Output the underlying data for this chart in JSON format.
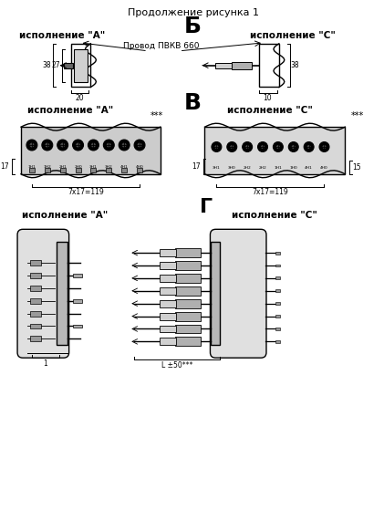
{
  "title": "Продолжение рисунка 1",
  "section_b": "Б",
  "section_v": "В",
  "section_g": "Г",
  "label_a": "исполнение \"А\"",
  "label_c": "исполнение \"С\"",
  "wire_label": "Провод ПВКВ 660",
  "dim_38": "38",
  "dim_27": "27",
  "dim_20": "20",
  "dim_10": "10",
  "dim_17": "17",
  "dim_7x17": "7x17=119",
  "dim_15": "15",
  "dim_1": "1",
  "dim_l50": "L ±50***",
  "stars": "***",
  "bg_color": "#ffffff",
  "line_color": "#000000",
  "gray_color": "#888888",
  "light_gray": "#cccccc"
}
